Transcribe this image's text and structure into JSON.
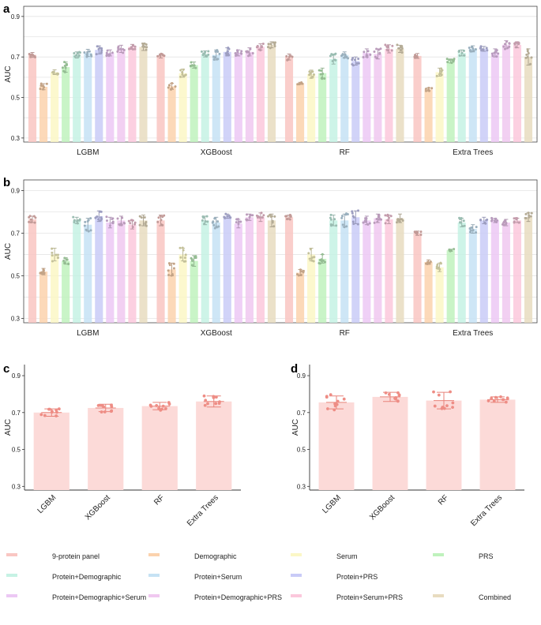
{
  "legend": {
    "title": "",
    "items": [
      {
        "name": "9-protein panel",
        "color": "#f9c6c2"
      },
      {
        "name": "Demographic",
        "color": "#fbd2ad"
      },
      {
        "name": "Serum",
        "color": "#fbf7c6"
      },
      {
        "name": "PRS",
        "color": "#bff2bd"
      },
      {
        "name": "Protein+Demographic",
        "color": "#c6f2e4"
      },
      {
        "name": "Protein+Serum",
        "color": "#c6e2f4"
      },
      {
        "name": "Protein+PRS",
        "color": "#c9cbf7"
      },
      {
        "name": "Protein+Demographic+Serum",
        "color": "#ecc8f4"
      },
      {
        "name": "Protein+Demographic+PRS",
        "color": "#f0c8f0"
      },
      {
        "name": "Protein+Serum+PRS",
        "color": "#fbc8dc"
      },
      {
        "name": "Combined",
        "color": "#e8dcc0"
      }
    ]
  },
  "chart_data": [
    {
      "panel": "a",
      "type": "bar",
      "ylabel": "AUC",
      "ylim": [
        0.28,
        0.95
      ],
      "yticks": [
        "0.3",
        "0.5",
        "0.7",
        "0.9"
      ],
      "grid": true,
      "categories": [
        "LGBM",
        "XGBoost",
        "RF",
        "Extra Trees"
      ],
      "series_names": [
        "9-protein panel",
        "Demographic",
        "Serum",
        "PRS",
        "Protein+Demographic",
        "Protein+Serum",
        "Protein+PRS",
        "Protein+Demographic+Serum",
        "Protein+Demographic+PRS",
        "Protein+Serum+PRS",
        "Combined"
      ],
      "values": [
        [
          0.71,
          0.553,
          0.625,
          0.65,
          0.71,
          0.72,
          0.735,
          0.72,
          0.74,
          0.75,
          0.75
        ],
        [
          0.705,
          0.555,
          0.62,
          0.66,
          0.715,
          0.71,
          0.725,
          0.72,
          0.725,
          0.75,
          0.76
        ],
        [
          0.7,
          0.57,
          0.615,
          0.62,
          0.69,
          0.71,
          0.68,
          0.72,
          0.715,
          0.74,
          0.74
        ],
        [
          0.705,
          0.54,
          0.625,
          0.68,
          0.72,
          0.74,
          0.74,
          0.72,
          0.76,
          0.76,
          0.7
        ]
      ],
      "errors": [
        [
          0.012,
          0.015,
          0.012,
          0.025,
          0.015,
          0.018,
          0.02,
          0.015,
          0.018,
          0.012,
          0.018
        ],
        [
          0.01,
          0.015,
          0.02,
          0.015,
          0.015,
          0.025,
          0.02,
          0.015,
          0.02,
          0.015,
          0.015
        ],
        [
          0.015,
          0.005,
          0.02,
          0.025,
          0.025,
          0.015,
          0.02,
          0.02,
          0.025,
          0.02,
          0.018
        ],
        [
          0.012,
          0.008,
          0.02,
          0.01,
          0.015,
          0.015,
          0.012,
          0.02,
          0.02,
          0.015,
          0.04
        ]
      ]
    },
    {
      "panel": "b",
      "type": "bar",
      "ylabel": "AUC",
      "ylim": [
        0.28,
        0.95
      ],
      "yticks": [
        "0.3",
        "0.5",
        "0.7",
        "0.9"
      ],
      "grid": true,
      "categories": [
        "LGBM",
        "XGBoost",
        "RF",
        "Extra Trees"
      ],
      "series_names": [
        "9-protein panel",
        "Demographic",
        "Serum",
        "PRS",
        "Protein+Demographic",
        "Protein+Serum",
        "Protein+PRS",
        "Protein+Demographic+Serum",
        "Protein+Demographic+PRS",
        "Protein+Serum+PRS",
        "Combined"
      ],
      "values": [
        [
          0.765,
          0.52,
          0.6,
          0.57,
          0.76,
          0.74,
          0.78,
          0.75,
          0.76,
          0.74,
          0.76
        ],
        [
          0.76,
          0.53,
          0.6,
          0.57,
          0.76,
          0.75,
          0.78,
          0.745,
          0.775,
          0.775,
          0.76
        ],
        [
          0.775,
          0.515,
          0.6,
          0.58,
          0.76,
          0.76,
          0.775,
          0.76,
          0.77,
          0.765,
          0.77
        ],
        [
          0.7,
          0.565,
          0.54,
          0.62,
          0.75,
          0.72,
          0.76,
          0.76,
          0.75,
          0.76,
          0.775
        ]
      ],
      "errors": [
        [
          0.015,
          0.015,
          0.03,
          0.015,
          0.015,
          0.03,
          0.025,
          0.025,
          0.02,
          0.02,
          0.025
        ],
        [
          0.025,
          0.03,
          0.03,
          0.025,
          0.02,
          0.025,
          0.01,
          0.02,
          0.015,
          0.02,
          0.03
        ],
        [
          0.01,
          0.015,
          0.03,
          0.02,
          0.025,
          0.03,
          0.03,
          0.02,
          0.02,
          0.02,
          0.02
        ],
        [
          0.01,
          0.01,
          0.02,
          0.005,
          0.02,
          0.02,
          0.015,
          0.01,
          0.015,
          0.01,
          0.02
        ]
      ]
    },
    {
      "panel": "c",
      "type": "bar",
      "ylabel": "AUC",
      "ylim": [
        0.28,
        0.96
      ],
      "yticks": [
        "0.3",
        "0.5",
        "0.7",
        "0.9"
      ],
      "grid": false,
      "categories": [
        "LGBM",
        "XGBoost",
        "RF",
        "Extra Trees"
      ],
      "series_names": [
        "9-protein panel"
      ],
      "values": [
        [
          0.7
        ],
        [
          0.725
        ],
        [
          0.735
        ],
        [
          0.76
        ]
      ],
      "errors": [
        [
          0.02
        ],
        [
          0.02
        ],
        [
          0.02
        ],
        [
          0.03
        ]
      ]
    },
    {
      "panel": "d",
      "type": "bar",
      "ylabel": "AUC",
      "ylim": [
        0.28,
        0.96
      ],
      "yticks": [
        "0.3",
        "0.5",
        "0.7",
        "0.9"
      ],
      "grid": false,
      "categories": [
        "LGBM",
        "XGBoost",
        "RF",
        "Extra Trees"
      ],
      "series_names": [
        "9-protein panel"
      ],
      "values": [
        [
          0.755
        ],
        [
          0.785
        ],
        [
          0.765
        ],
        [
          0.77
        ]
      ],
      "errors": [
        [
          0.035
        ],
        [
          0.025
        ],
        [
          0.045
        ],
        [
          0.015
        ]
      ]
    }
  ]
}
